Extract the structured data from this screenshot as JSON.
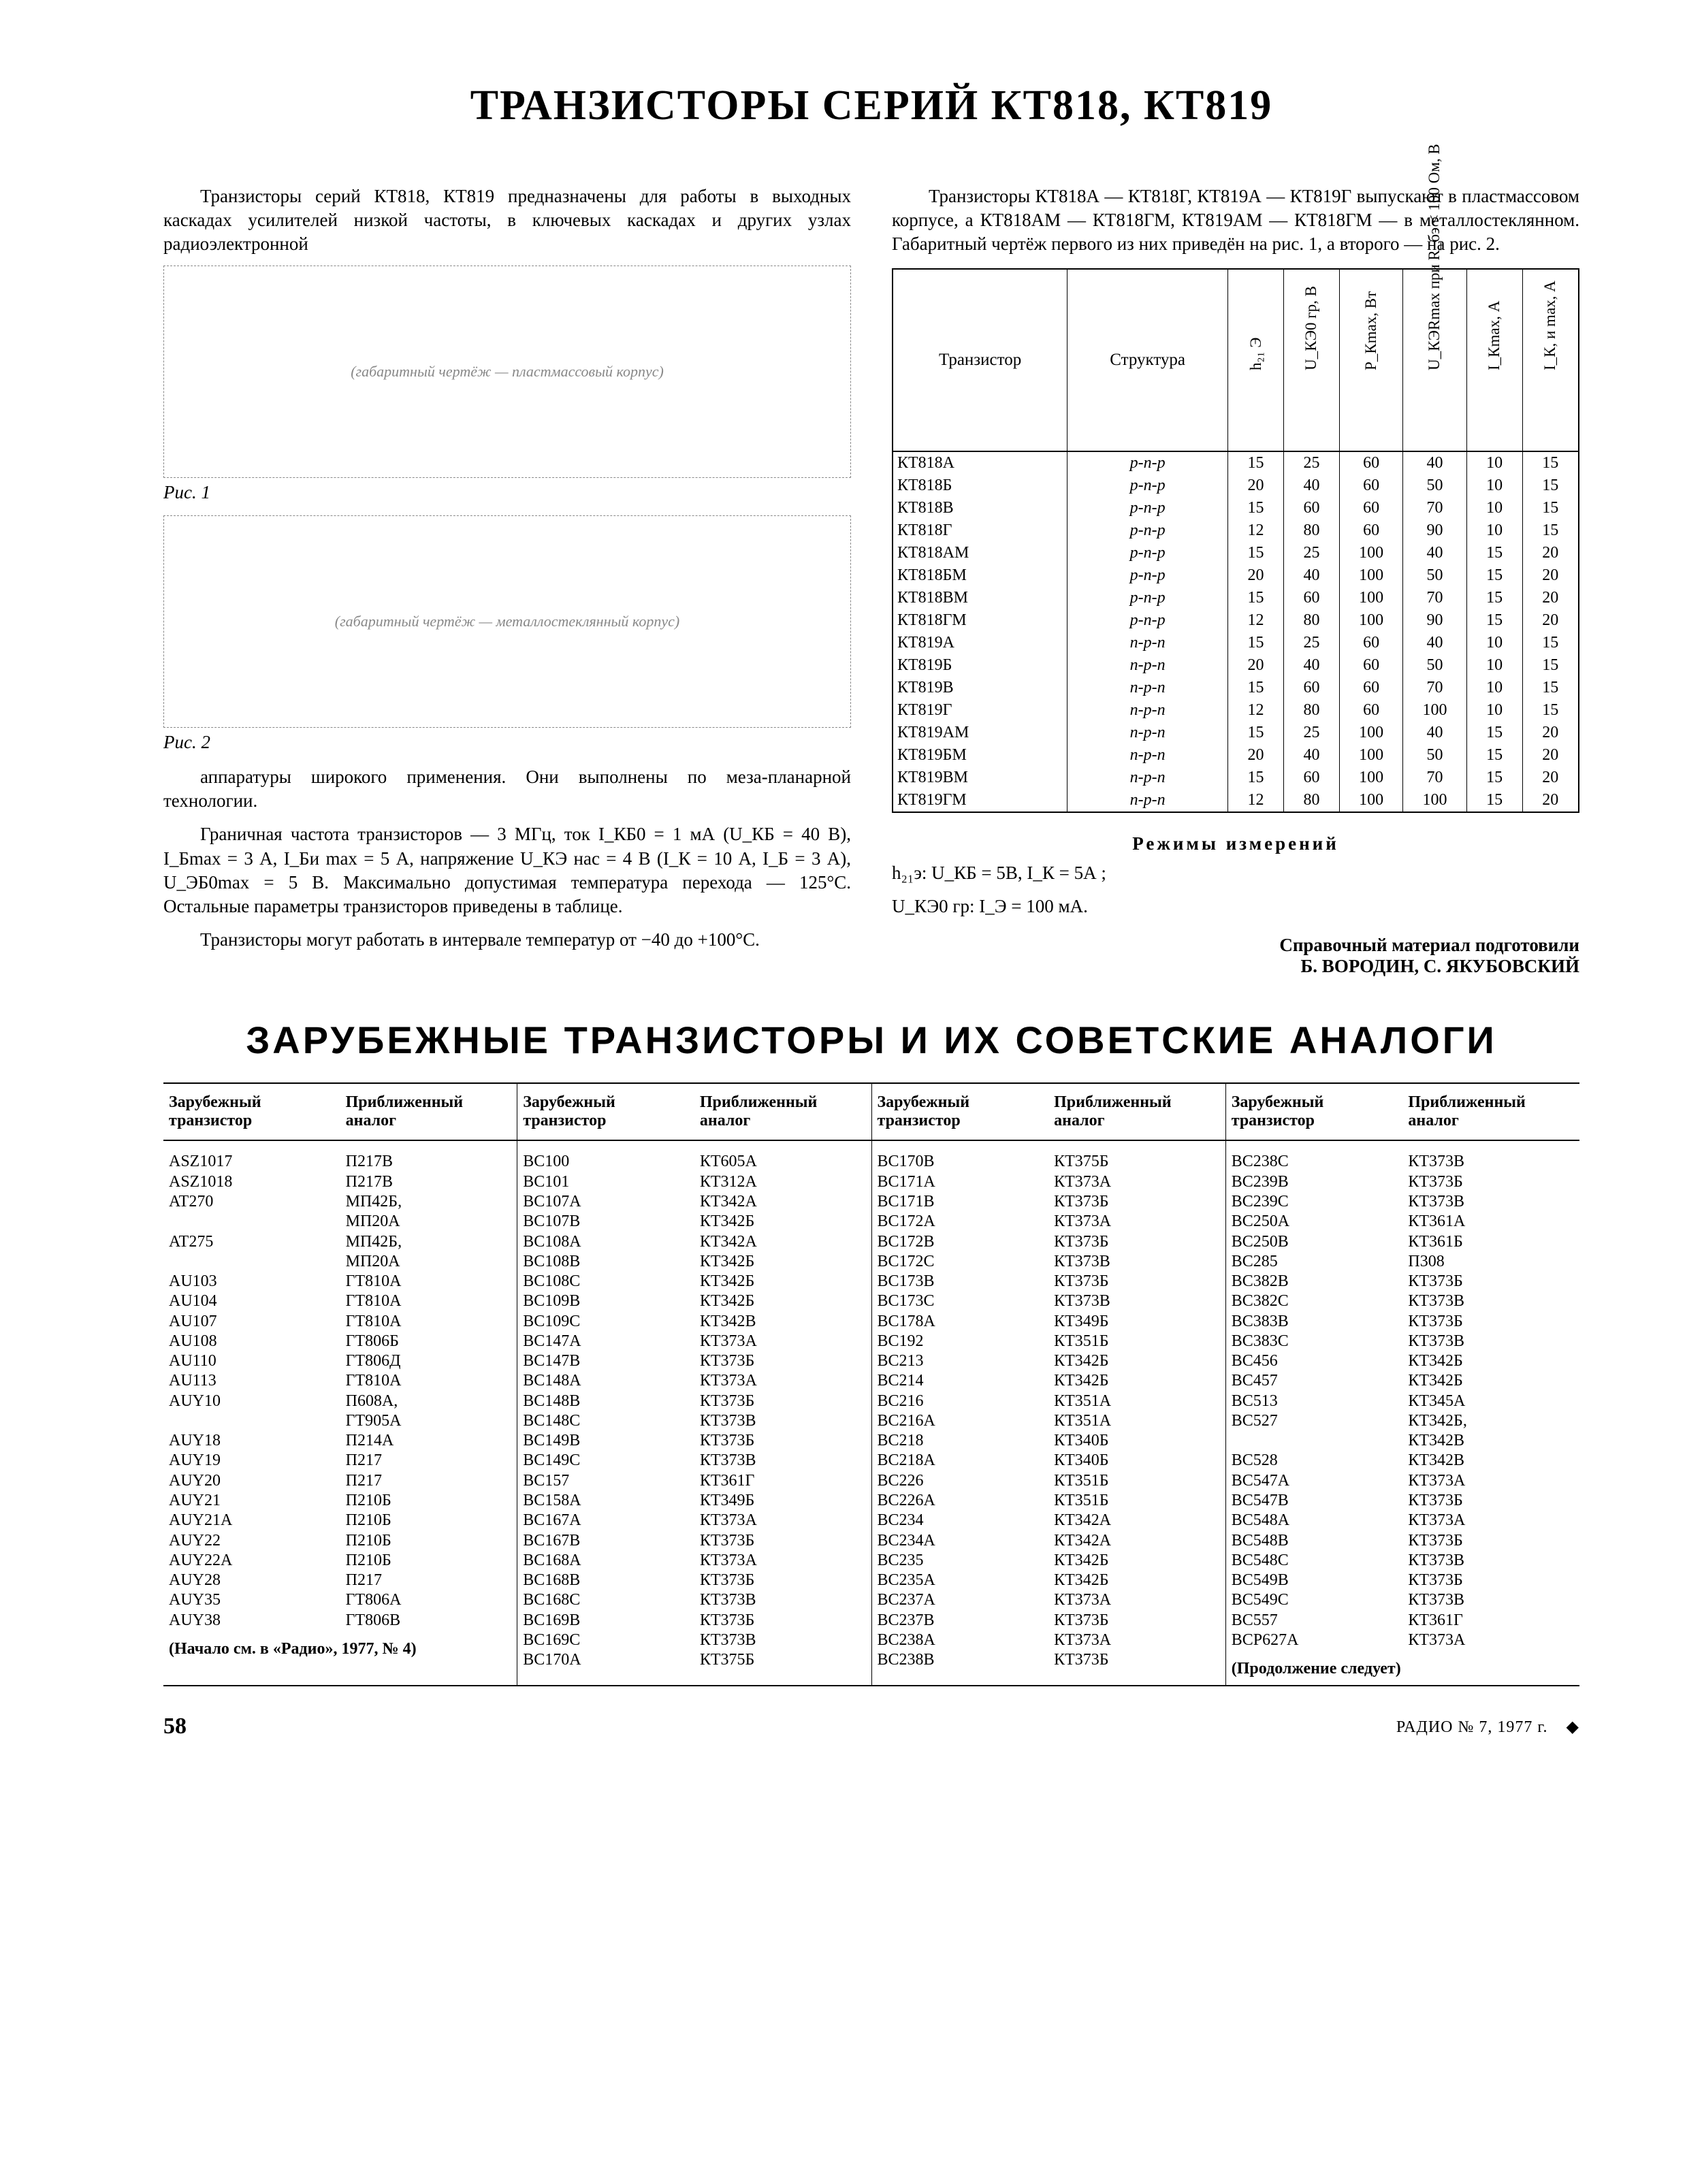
{
  "title": "ТРАНЗИСТОРЫ СЕРИЙ КТ818, КТ819",
  "intro_left": "Транзисторы серий КТ818, КТ819 предназначены для работы в выходных каскадах усилителей низкой частоты, в ключевых каскадах и других узлах радиоэлектронной",
  "intro_right": "Транзисторы КТ818А — КТ818Г, КТ819А — КТ819Г выпускают в пластмассовом корпусе, а КТ818АМ — КТ818ГМ, КТ819АМ — КТ818ГМ — в металлостеклянном. Габаритный чертёж первого из них приведён на рис. 1, а второго — на рис. 2.",
  "fig1_label": "Рис. 1",
  "fig2_label": "Рис. 2",
  "fig1_placeholder": "(габаритный чертёж — пластмассовый корпус)",
  "fig2_placeholder": "(габаритный чертёж — металлостеклянный корпус)",
  "left_p2": "аппаратуры широкого применения. Они выполнены по меза-планарной технологии.",
  "left_p3": "Граничная частота транзисторов — 3 МГц, ток I_КБ0 = 1 мА (U_КБ = 40 В), I_Бmax = 3 А, I_Би max = 5 А, напряжение U_КЭ нас = 4 В (I_К = 10 А, I_Б = 3 А), U_ЭБ0max = 5 В. Максимально допустимая температура перехода — 125°C. Остальные параметры транзисторов приведены в таблице.",
  "left_p4": "Транзисторы могут работать в интервале температур от −40 до +100°C.",
  "spec_headers": [
    "Транзистор",
    "Структура",
    "h₂₁ Э",
    "U_КЭ0 гр, В",
    "P_Кmax, Вт",
    "U_КЭRmax при R_бэ < 100 Ом, В",
    "I_Кmax, А",
    "I_К, и max, А"
  ],
  "spec_rows": [
    [
      "КТ818А",
      "p-n-p",
      "15",
      "25",
      "60",
      "40",
      "10",
      "15"
    ],
    [
      "КТ818Б",
      "p-n-p",
      "20",
      "40",
      "60",
      "50",
      "10",
      "15"
    ],
    [
      "КТ818В",
      "p-n-p",
      "15",
      "60",
      "60",
      "70",
      "10",
      "15"
    ],
    [
      "КТ818Г",
      "p-n-p",
      "12",
      "80",
      "60",
      "90",
      "10",
      "15"
    ],
    [
      "КТ818АМ",
      "p-n-p",
      "15",
      "25",
      "100",
      "40",
      "15",
      "20"
    ],
    [
      "КТ818БМ",
      "p-n-p",
      "20",
      "40",
      "100",
      "50",
      "15",
      "20"
    ],
    [
      "КТ818ВМ",
      "p-n-p",
      "15",
      "60",
      "100",
      "70",
      "15",
      "20"
    ],
    [
      "КТ818ГМ",
      "p-n-p",
      "12",
      "80",
      "100",
      "90",
      "15",
      "20"
    ],
    [
      "КТ819А",
      "n-p-n",
      "15",
      "25",
      "60",
      "40",
      "10",
      "15"
    ],
    [
      "КТ819Б",
      "n-p-n",
      "20",
      "40",
      "60",
      "50",
      "10",
      "15"
    ],
    [
      "КТ819В",
      "n-p-n",
      "15",
      "60",
      "60",
      "70",
      "10",
      "15"
    ],
    [
      "КТ819Г",
      "n-p-n",
      "12",
      "80",
      "60",
      "100",
      "10",
      "15"
    ],
    [
      "КТ819АМ",
      "n-p-n",
      "15",
      "25",
      "100",
      "40",
      "15",
      "20"
    ],
    [
      "КТ819БМ",
      "n-p-n",
      "20",
      "40",
      "100",
      "50",
      "15",
      "20"
    ],
    [
      "КТ819ВМ",
      "n-p-n",
      "15",
      "60",
      "100",
      "70",
      "15",
      "20"
    ],
    [
      "КТ819ГМ",
      "n-p-n",
      "12",
      "80",
      "100",
      "100",
      "15",
      "20"
    ]
  ],
  "meas_title": "Режимы измерений",
  "meas_line1": "h₂₁э: U_КБ = 5В, I_К = 5А ;",
  "meas_line2": "U_КЭ0 гр: I_Э = 100 мА.",
  "credits_line1": "Справочный материал подготовили",
  "credits_line2": "Б. ВОРОДИН, С. ЯКУБОВСКИЙ",
  "sec_title": "ЗАРУБЕЖНЫЕ ТРАНЗИСТОРЫ И ИХ СОВЕТСКИЕ АНАЛОГИ",
  "analog_head_foreign": "Зарубежный транзистор",
  "analog_head_analog": "Приближенный аналог",
  "analog_blocks": [
    {
      "rows": [
        [
          "ASZ1017",
          "П217В"
        ],
        [
          "ASZ1018",
          "П217В"
        ],
        [
          "AT270",
          "МП42Б,"
        ],
        [
          "",
          "МП20А"
        ],
        [
          "AT275",
          "МП42Б,"
        ],
        [
          "",
          "МП20А"
        ],
        [
          "AU103",
          "ГТ810А"
        ],
        [
          "AU104",
          "ГТ810А"
        ],
        [
          "AU107",
          "ГТ810А"
        ],
        [
          "AU108",
          "ГТ806Б"
        ],
        [
          "AU110",
          "ГТ806Д"
        ],
        [
          "AU113",
          "ГТ810А"
        ],
        [
          "AUY10",
          "П608А,"
        ],
        [
          "",
          "ГТ905А"
        ],
        [
          "AUY18",
          "П214А"
        ],
        [
          "AUY19",
          "П217"
        ],
        [
          "AUY20",
          "П217"
        ],
        [
          "AUY21",
          "П210Б"
        ],
        [
          "AUY21A",
          "П210Б"
        ],
        [
          "AUY22",
          "П210Б"
        ],
        [
          "AUY22A",
          "П210Б"
        ],
        [
          "AUY28",
          "П217"
        ],
        [
          "AUY35",
          "ГТ806А"
        ],
        [
          "AUY38",
          "ГТ806В"
        ]
      ],
      "note": "(Начало см. в «Радио», 1977, № 4)"
    },
    {
      "rows": [
        [
          "BC100",
          "КТ605А"
        ],
        [
          "BC101",
          "КТ312А"
        ],
        [
          "BC107A",
          "КТ342А"
        ],
        [
          "BC107B",
          "КТ342Б"
        ],
        [
          "BC108A",
          "КТ342А"
        ],
        [
          "BC108B",
          "КТ342Б"
        ],
        [
          "BC108C",
          "КТ342Б"
        ],
        [
          "BC109B",
          "КТ342Б"
        ],
        [
          "BC109C",
          "КТ342В"
        ],
        [
          "BC147A",
          "КТ373А"
        ],
        [
          "BC147B",
          "КТ373Б"
        ],
        [
          "BC148A",
          "КТ373А"
        ],
        [
          "BC148B",
          "КТ373Б"
        ],
        [
          "BC148C",
          "КТ373В"
        ],
        [
          "BC149B",
          "КТ373Б"
        ],
        [
          "BC149C",
          "КТ373В"
        ],
        [
          "BC157",
          "КТ361Г"
        ],
        [
          "BC158A",
          "КТ349Б"
        ],
        [
          "BC167A",
          "КТ373А"
        ],
        [
          "BC167B",
          "КТ373Б"
        ],
        [
          "BC168A",
          "КТ373А"
        ],
        [
          "BC168B",
          "КТ373Б"
        ],
        [
          "BC168C",
          "КТ373В"
        ],
        [
          "BC169B",
          "КТ373Б"
        ],
        [
          "BC169C",
          "КТ373В"
        ],
        [
          "BC170A",
          "КТ375Б"
        ]
      ],
      "note": ""
    },
    {
      "rows": [
        [
          "BC170B",
          "КТ375Б"
        ],
        [
          "BC171A",
          "КТ373А"
        ],
        [
          "BC171B",
          "КТ373Б"
        ],
        [
          "BC172A",
          "КТ373А"
        ],
        [
          "BC172B",
          "КТ373Б"
        ],
        [
          "BC172C",
          "КТ373В"
        ],
        [
          "BC173B",
          "КТ373Б"
        ],
        [
          "BC173C",
          "КТ373В"
        ],
        [
          "BC178A",
          "КТ349Б"
        ],
        [
          "BC192",
          "КТ351Б"
        ],
        [
          "BC213",
          "КТ342Б"
        ],
        [
          "BC214",
          "КТ342Б"
        ],
        [
          "BC216",
          "КТ351А"
        ],
        [
          "BC216A",
          "КТ351А"
        ],
        [
          "BC218",
          "КТ340Б"
        ],
        [
          "BC218A",
          "КТ340Б"
        ],
        [
          "BC226",
          "КТ351Б"
        ],
        [
          "BC226A",
          "КТ351Б"
        ],
        [
          "BC234",
          "КТ342А"
        ],
        [
          "BC234A",
          "КТ342А"
        ],
        [
          "BC235",
          "КТ342Б"
        ],
        [
          "BC235A",
          "КТ342Б"
        ],
        [
          "BC237A",
          "КТ373А"
        ],
        [
          "BC237B",
          "КТ373Б"
        ],
        [
          "BC238A",
          "КТ373А"
        ],
        [
          "BC238B",
          "КТ373Б"
        ]
      ],
      "note": ""
    },
    {
      "rows": [
        [
          "BC238C",
          "КТ373В"
        ],
        [
          "BC239B",
          "КТ373Б"
        ],
        [
          "BC239C",
          "КТ373В"
        ],
        [
          "BC250A",
          "КТ361А"
        ],
        [
          "BC250B",
          "КТ361Б"
        ],
        [
          "BC285",
          "П308"
        ],
        [
          "BC382B",
          "КТ373Б"
        ],
        [
          "BC382C",
          "КТ373В"
        ],
        [
          "BC383B",
          "КТ373Б"
        ],
        [
          "BC383C",
          "КТ373В"
        ],
        [
          "BC456",
          "КТ342Б"
        ],
        [
          "BC457",
          "КТ342Б"
        ],
        [
          "BC513",
          "КТ345А"
        ],
        [
          "BC527",
          "КТ342Б,"
        ],
        [
          "",
          "КТ342В"
        ],
        [
          "BC528",
          "КТ342В"
        ],
        [
          "BC547A",
          "КТ373А"
        ],
        [
          "BC547B",
          "КТ373Б"
        ],
        [
          "BC548A",
          "КТ373А"
        ],
        [
          "BC548B",
          "КТ373Б"
        ],
        [
          "BC548C",
          "КТ373В"
        ],
        [
          "BC549B",
          "КТ373Б"
        ],
        [
          "BC549C",
          "КТ373В"
        ],
        [
          "BC557",
          "КТ361Г"
        ],
        [
          "BCP627A",
          "КТ373А"
        ]
      ],
      "note": "(Продолжение следует)"
    }
  ],
  "footer_page": "58",
  "footer_mag": "РАДИО № 7, 1977 г."
}
